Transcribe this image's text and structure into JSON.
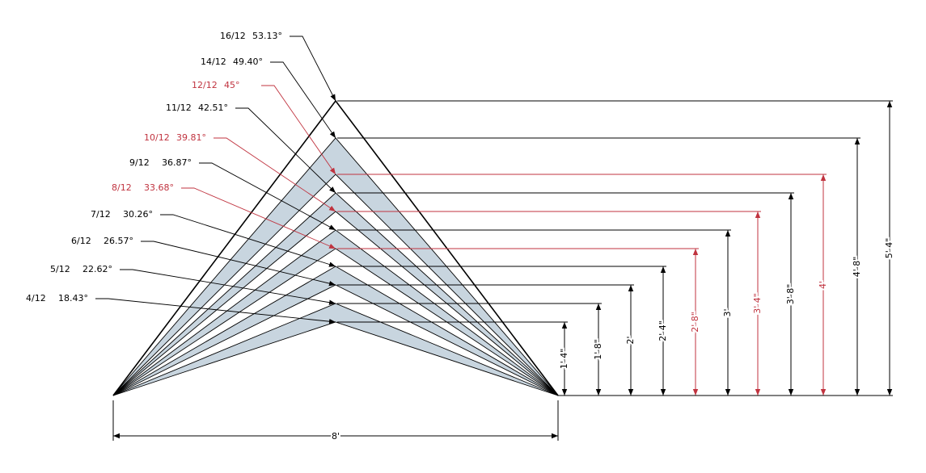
{
  "pitches": [
    {
      "pitch": "16/12",
      "angle": "53.13°",
      "rise": "5' 4\"",
      "color": "#000000"
    },
    {
      "pitch": "14/12",
      "angle": "49.40°",
      "rise": "4' 8\"",
      "color": "#000000"
    },
    {
      "pitch": "12/12",
      "angle": "45°",
      "rise": "4'",
      "color": "#c0333f"
    },
    {
      "pitch": "11/12",
      "angle": "42.51°",
      "rise": "3' 8\"",
      "color": "#000000"
    },
    {
      "pitch": "10/12",
      "angle": "39.81°",
      "rise": "3' 4\"",
      "color": "#c0333f"
    },
    {
      "pitch": "9/12",
      "angle": "36.87°",
      "rise": "3'",
      "color": "#000000"
    },
    {
      "pitch": "8/12",
      "angle": "33.68°",
      "rise": "2' 8\"",
      "color": "#c0333f"
    },
    {
      "pitch": "7/12",
      "angle": "30.26°",
      "rise": "2' 4\"",
      "color": "#000000"
    },
    {
      "pitch": "6/12",
      "angle": "26.57°",
      "rise": "2'",
      "color": "#000000"
    },
    {
      "pitch": "5/12",
      "angle": "22.62°",
      "rise": "1' 8\"",
      "color": "#000000"
    },
    {
      "pitch": "4/12",
      "angle": "18.43°",
      "rise": "1' 4\"",
      "color": "#000000"
    }
  ],
  "span": "8'"
}
